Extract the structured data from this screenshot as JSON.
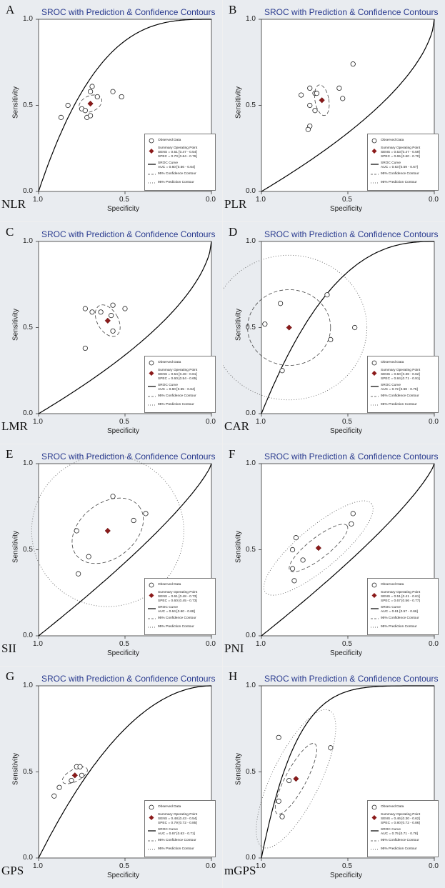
{
  "chart_data": [
    {
      "letter": "A",
      "marker": "NLR",
      "type": "scatter",
      "title": "SROC with Prediction & Confidence Contours",
      "xlabel": "Specificity",
      "ylabel": "Sensitivity",
      "xlim": [
        1.0,
        0.0
      ],
      "ylim": [
        0.0,
        1.0
      ],
      "x_ticks": [
        "1.0",
        "0.5",
        "0.0"
      ],
      "y_ticks": [
        "0.0",
        "0.5",
        "1.0"
      ],
      "observed": [
        [
          0.87,
          0.43
        ],
        [
          0.83,
          0.5
        ],
        [
          0.75,
          0.48
        ],
        [
          0.73,
          0.47
        ],
        [
          0.72,
          0.43
        ],
        [
          0.7,
          0.44
        ],
        [
          0.7,
          0.58
        ],
        [
          0.69,
          0.61
        ],
        [
          0.66,
          0.55
        ],
        [
          0.57,
          0.58
        ],
        [
          0.52,
          0.55
        ]
      ],
      "summary": [
        0.7,
        0.51
      ],
      "auc": 0.6,
      "curve_shape": 3.0,
      "confidence": {
        "rx": 0.07,
        "ry": 0.045,
        "angle": -25
      },
      "prediction": null,
      "legend": {
        "observed": "Observed Data",
        "summary_title": "Summary Operating Point",
        "sens": "SENS = 0.51 [0.47 - 0.54]",
        "spec": "SPEC = 0.70 [0.64 - 0.76]",
        "sroc_title": "SROC Curve",
        "auc": "AUC = 0.60 [0.56 - 0.64]",
        "conf": "95% Confidence Contour",
        "pred": "95% Prediction Contour"
      }
    },
    {
      "letter": "B",
      "marker": "PLR",
      "type": "scatter",
      "title": "SROC with Prediction & Confidence Contours",
      "xlabel": "Specificity",
      "ylabel": "Sensitivity",
      "xlim": [
        1.0,
        0.0
      ],
      "ylim": [
        0.0,
        1.0
      ],
      "x_ticks": [
        "1.0",
        "0.5",
        "0.0"
      ],
      "y_ticks": [
        "0.0",
        "0.5",
        "1.0"
      ],
      "observed": [
        [
          0.77,
          0.56
        ],
        [
          0.72,
          0.6
        ],
        [
          0.69,
          0.57
        ],
        [
          0.68,
          0.57
        ],
        [
          0.72,
          0.5
        ],
        [
          0.69,
          0.47
        ],
        [
          0.72,
          0.38
        ],
        [
          0.73,
          0.36
        ],
        [
          0.55,
          0.6
        ],
        [
          0.53,
          0.54
        ],
        [
          0.47,
          0.74
        ]
      ],
      "summary": [
        0.65,
        0.53
      ],
      "auc": 0.63,
      "curve_shape": 0.6,
      "confidence": {
        "rx": 0.04,
        "ry": 0.09,
        "angle": -10
      },
      "prediction": null,
      "legend": {
        "observed": "Observed Data",
        "summary_title": "Summary Operating Point",
        "sens": "SENS = 0.53 [0.47 - 0.59]",
        "spec": "SPEC = 0.65 [0.60 - 0.70]",
        "sroc_title": "SROC Curve",
        "auc": "AUC = 0.63 [0.59 - 0.67]",
        "conf": "95% Confidence Contour",
        "pred": "95% Prediction Contour"
      }
    },
    {
      "letter": "C",
      "marker": "LMR",
      "type": "scatter",
      "title": "SROC with Prediction & Confidence Contours",
      "xlabel": "Specificity",
      "ylabel": "Sensitivity",
      "xlim": [
        1.0,
        0.0
      ],
      "ylim": [
        0.0,
        1.0
      ],
      "x_ticks": [
        "1.0",
        "0.5",
        "0.0"
      ],
      "y_ticks": [
        "0.0",
        "0.5",
        "1.0"
      ],
      "observed": [
        [
          0.73,
          0.38
        ],
        [
          0.69,
          0.59
        ],
        [
          0.64,
          0.59
        ],
        [
          0.57,
          0.63
        ],
        [
          0.58,
          0.57
        ],
        [
          0.57,
          0.48
        ],
        [
          0.5,
          0.61
        ],
        [
          0.73,
          0.61
        ]
      ],
      "summary": [
        0.6,
        0.54
      ],
      "auc": 0.6,
      "curve_shape": 0.6,
      "confidence": {
        "rx": 0.06,
        "ry": 0.1,
        "angle": -30
      },
      "prediction": null,
      "legend": {
        "observed": "Observed Data",
        "summary_title": "Summary Operating Point",
        "sens": "SENS = 0.54 [0.48 - 0.61]",
        "spec": "SPEC = 0.60 [0.54 - 0.65]",
        "sroc_title": "SROC Curve",
        "auc": "AUC = 0.60 [0.55 - 0.64]",
        "conf": "95% Confidence Contour",
        "pred": "95% Prediction Contour"
      }
    },
    {
      "letter": "D",
      "marker": "CAR",
      "type": "scatter",
      "title": "SROC with Prediction & Confidence Contours",
      "xlabel": "Specificity",
      "ylabel": "Sensitivity",
      "xlim": [
        1.0,
        0.0
      ],
      "ylim": [
        0.0,
        1.0
      ],
      "x_ticks": [
        "1.0",
        "0.5",
        "0.0"
      ],
      "y_ticks": [
        "0.0",
        "0.5",
        "1.0"
      ],
      "observed": [
        [
          0.98,
          0.52
        ],
        [
          0.89,
          0.64
        ],
        [
          0.62,
          0.69
        ],
        [
          0.6,
          0.43
        ],
        [
          0.46,
          0.5
        ],
        [
          0.88,
          0.25
        ]
      ],
      "summary": [
        0.84,
        0.5
      ],
      "auc": 0.72,
      "curve_shape": 2.5,
      "confidence": {
        "rx": 0.24,
        "ry": 0.22,
        "angle": 0
      },
      "prediction": {
        "rx": 0.45,
        "ry": 0.42,
        "angle": 0
      },
      "legend": {
        "observed": "Observed Data",
        "summary_title": "Summary Operating Point",
        "sens": "SENS = 0.50 [0.38 - 0.62]",
        "spec": "SPEC = 0.84 [0.71 - 0.91]",
        "sroc_title": "SROC Curve",
        "auc": "AUC = 0.72 [0.68 - 0.75]",
        "conf": "95% Confidence Contour",
        "pred": "95% Prediction Contour"
      }
    },
    {
      "letter": "E",
      "marker": "SII",
      "type": "scatter",
      "title": "SROC with Prediction & Confidence Contours",
      "xlabel": "Specificity",
      "ylabel": "Sensitivity",
      "xlim": [
        1.0,
        0.0
      ],
      "ylim": [
        0.0,
        1.0
      ],
      "x_ticks": [
        "1.0",
        "0.5",
        "0.0"
      ],
      "y_ticks": [
        "0.0",
        "0.5",
        "1.0"
      ],
      "observed": [
        [
          0.78,
          0.61
        ],
        [
          0.57,
          0.81
        ],
        [
          0.45,
          0.67
        ],
        [
          0.38,
          0.71
        ],
        [
          0.71,
          0.46
        ],
        [
          0.77,
          0.36
        ]
      ],
      "summary": [
        0.6,
        0.61
      ],
      "auc": 0.64,
      "curve_shape": 0.8,
      "confidence": {
        "rx": 0.23,
        "ry": 0.16,
        "angle": -38
      },
      "prediction": {
        "rx": 0.44,
        "ry": 0.44,
        "angle": 0
      },
      "legend": {
        "observed": "Observed Data",
        "summary_title": "Summary Operating Point",
        "sens": "SENS = 0.61 [0.48 - 0.73]",
        "spec": "SPEC = 0.60 [0.45 - 0.73]",
        "sroc_title": "SROC Curve",
        "auc": "AUC = 0.64 [0.60 - 0.68]",
        "conf": "95% Confidence Contour",
        "pred": "95% Prediction Contour"
      }
    },
    {
      "letter": "F",
      "marker": "PNI",
      "type": "scatter",
      "title": "SROC with Prediction & Confidence Contours",
      "xlabel": "Specificity",
      "ylabel": "Sensitivity",
      "xlim": [
        1.0,
        0.0
      ],
      "ylim": [
        0.0,
        1.0
      ],
      "x_ticks": [
        "1.0",
        "0.5",
        "0.0"
      ],
      "y_ticks": [
        "0.0",
        "0.5",
        "1.0"
      ],
      "observed": [
        [
          0.82,
          0.39
        ],
        [
          0.81,
          0.32
        ],
        [
          0.8,
          0.57
        ],
        [
          0.82,
          0.5
        ],
        [
          0.76,
          0.44
        ],
        [
          0.48,
          0.65
        ],
        [
          0.47,
          0.71
        ]
      ],
      "summary": [
        0.67,
        0.51
      ],
      "auc": 0.61,
      "curve_shape": 0.8,
      "confidence": {
        "rx": 0.21,
        "ry": 0.06,
        "angle": -38
      },
      "prediction": {
        "rx": 0.4,
        "ry": 0.12,
        "angle": -40
      },
      "legend": {
        "observed": "Observed Data",
        "summary_title": "Summary Operating Point",
        "sens": "SENS = 0.51 [0.41 - 0.61]",
        "spec": "SPEC = 0.67 [0.56 - 0.77]",
        "sroc_title": "SROC Curve",
        "auc": "AUC = 0.61 [0.57 - 0.66]",
        "conf": "95% Confidence Contour",
        "pred": "95% Prediction Contour"
      }
    },
    {
      "letter": "G",
      "marker": "GPS",
      "type": "scatter",
      "title": "SROC with Prediction & Confidence Contours",
      "xlabel": "Specificity",
      "ylabel": "Sensitivity",
      "xlim": [
        1.0,
        0.0
      ],
      "ylim": [
        0.0,
        1.0
      ],
      "x_ticks": [
        "1.0",
        "0.5",
        "0.0"
      ],
      "y_ticks": [
        "0.0",
        "0.5",
        "1.0"
      ],
      "observed": [
        [
          0.91,
          0.36
        ],
        [
          0.88,
          0.41
        ],
        [
          0.81,
          0.45
        ],
        [
          0.78,
          0.53
        ],
        [
          0.76,
          0.53
        ],
        [
          0.75,
          0.48
        ]
      ],
      "summary": [
        0.79,
        0.48
      ],
      "auc": 0.67,
      "curve_shape": 2.0,
      "confidence": {
        "rx": 0.08,
        "ry": 0.035,
        "angle": -28
      },
      "prediction": null,
      "legend": {
        "observed": "Observed Data",
        "summary_title": "Summary Operating Point",
        "sens": "SENS = 0.48 [0.43 - 0.54]",
        "spec": "SPEC = 0.79 [0.72 - 0.85]",
        "sroc_title": "SROC Curve",
        "auc": "AUC = 0.67 [0.63 - 0.71]",
        "conf": "95% Confidence Contour",
        "pred": "95% Prediction Contour"
      }
    },
    {
      "letter": "H",
      "marker": "mGPS",
      "type": "scatter",
      "title": "SROC with Prediction & Confidence Contours",
      "xlabel": "Specificity",
      "ylabel": "Sensitivity",
      "xlim": [
        1.0,
        0.0
      ],
      "ylim": [
        0.0,
        1.0
      ],
      "x_ticks": [
        "1.0",
        "0.5",
        "0.0"
      ],
      "y_ticks": [
        "0.0",
        "0.5",
        "1.0"
      ],
      "observed": [
        [
          0.9,
          0.7
        ],
        [
          0.9,
          0.33
        ],
        [
          0.88,
          0.24
        ],
        [
          0.84,
          0.45
        ],
        [
          0.6,
          0.64
        ]
      ],
      "summary": [
        0.8,
        0.46
      ],
      "auc": 0.75,
      "curve_shape": 5.0,
      "confidence": {
        "rx": 0.23,
        "ry": 0.06,
        "angle": -62
      },
      "prediction": {
        "rx": 0.44,
        "ry": 0.14,
        "angle": -64
      },
      "legend": {
        "observed": "Observed Data",
        "summary_title": "Summary Operating Point",
        "sens": "SENS = 0.46 [0.30 - 0.62]",
        "spec": "SPEC = 0.80 [0.72 - 0.86]",
        "sroc_title": "SROC Curve",
        "auc": "AUC = 0.75 [0.71 - 0.78]",
        "conf": "95% Confidence Contour",
        "pred": "95% Prediction Contour"
      }
    }
  ]
}
